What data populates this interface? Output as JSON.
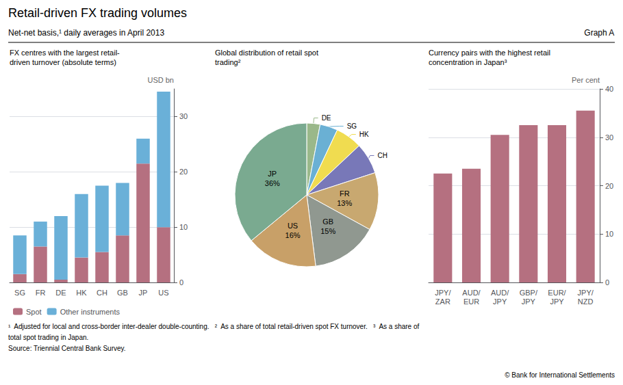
{
  "title": "Retail-driven FX trading volumes",
  "subtitle": "Net-net basis,¹ daily averages in April 2013",
  "annotations": [
    "Graph A",
    "¹  Adjusted for local and cross-border inter-dealer double-counting.   ²  As a share of total retail-driven spot FX turnover.   ³  As a share of",
    "total spot trading in Japan.",
    "Source: Triennial Central Bank Survey.",
    "© Bank for International Settlements"
  ],
  "chart_data": [
    {
      "type": "bar",
      "title": "FX centres with the largest retail-\ndriven turnover (absolute terms)",
      "ylabel": "USD bn",
      "categories": [
        "SG",
        "FR",
        "DE",
        "HK",
        "CH",
        "GB",
        "JP",
        "US"
      ],
      "stacked": true,
      "series": [
        {
          "name": "Spot",
          "color": "#b57080",
          "values": [
            1.5,
            6.5,
            0.5,
            4.5,
            5.5,
            8.5,
            21.5,
            10.0
          ]
        },
        {
          "name": "Other instruments",
          "color": "#6ab0d8",
          "values": [
            7.0,
            4.5,
            11.5,
            11.5,
            12.0,
            9.5,
            4.5,
            24.5
          ]
        }
      ],
      "ylim": [
        0,
        35
      ],
      "yticks": [
        0,
        10,
        20,
        30
      ],
      "grid": true,
      "legend": "bottom"
    },
    {
      "type": "pie",
      "title": "Global distribution of retail spot\ntrading²",
      "categories": [
        "DE",
        "SG",
        "HK",
        "CH",
        "FR",
        "GB",
        "US",
        "JP"
      ],
      "values": [
        3,
        4,
        6,
        7,
        13,
        15,
        16,
        36
      ],
      "value_labels": [
        null,
        null,
        null,
        null,
        "13%",
        "15%",
        "16%",
        "36%"
      ],
      "colors": [
        "#9ab88a",
        "#6ab0d4",
        "#f0dc50",
        "#7878b8",
        "#c8a870",
        "#909890",
        "#c8a068",
        "#7aaa90"
      ],
      "data_labels": true
    },
    {
      "type": "bar",
      "title": "Currency pairs with the highest retail\nconcentration in Japan³",
      "ylabel": "Per cent",
      "categories": [
        "JPY/\nZAR",
        "AUD/\nEUR",
        "AUD/\nJPY",
        "GBP/\nJPY",
        "EUR/\nJPY",
        "JPY/\nNZD"
      ],
      "values": [
        22.5,
        23.5,
        30.5,
        32.5,
        32.5,
        35.5
      ],
      "color": "#b57080",
      "ylim": [
        0,
        40
      ],
      "yticks": [
        0,
        10,
        20,
        30,
        40
      ],
      "grid": true
    }
  ]
}
